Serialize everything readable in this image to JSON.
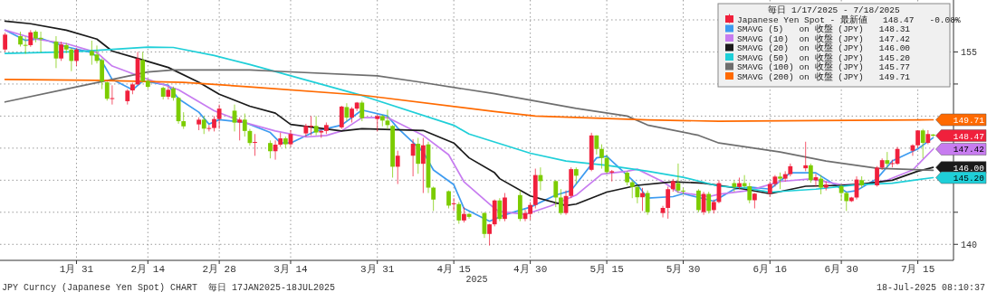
{
  "chart_data": {
    "type": "candlestick",
    "xlabel": "2025",
    "legend": "top right",
    "legend_title": "毎日 1/17/2025 - 7/18/2025",
    "grid": true,
    "x": [
      "2025-01-17",
      "2025-01-20",
      "2025-01-21",
      "2025-01-22",
      "2025-01-23",
      "2025-01-24",
      "2025-01-27",
      "2025-01-28",
      "2025-01-29",
      "2025-01-30",
      "2025-01-31",
      "2025-02-03",
      "2025-02-04",
      "2025-02-05",
      "2025-02-06",
      "2025-02-07",
      "2025-02-10",
      "2025-02-11",
      "2025-02-12",
      "2025-02-13",
      "2025-02-14",
      "2025-02-17",
      "2025-02-18",
      "2025-02-19",
      "2025-02-20",
      "2025-02-21",
      "2025-02-24",
      "2025-02-25",
      "2025-02-26",
      "2025-02-27",
      "2025-02-28",
      "2025-03-03",
      "2025-03-04",
      "2025-03-05",
      "2025-03-06",
      "2025-03-07",
      "2025-03-10",
      "2025-03-11",
      "2025-03-12",
      "2025-03-13",
      "2025-03-14",
      "2025-03-17",
      "2025-03-18",
      "2025-03-19",
      "2025-03-20",
      "2025-03-21",
      "2025-03-24",
      "2025-03-25",
      "2025-03-26",
      "2025-03-27",
      "2025-03-28",
      "2025-03-31",
      "2025-04-01",
      "2025-04-02",
      "2025-04-03",
      "2025-04-04",
      "2025-04-07",
      "2025-04-08",
      "2025-04-09",
      "2025-04-10",
      "2025-04-11",
      "2025-04-14",
      "2025-04-15",
      "2025-04-16",
      "2025-04-17",
      "2025-04-18",
      "2025-04-21",
      "2025-04-22",
      "2025-04-23",
      "2025-04-24",
      "2025-04-25",
      "2025-04-28",
      "2025-04-29",
      "2025-04-30",
      "2025-05-01",
      "2025-05-02",
      "2025-05-05",
      "2025-05-06",
      "2025-05-07",
      "2025-05-08",
      "2025-05-09",
      "2025-05-12",
      "2025-05-13",
      "2025-05-14",
      "2025-05-15",
      "2025-05-16",
      "2025-05-19",
      "2025-05-20",
      "2025-05-21",
      "2025-05-22",
      "2025-05-23",
      "2025-05-26",
      "2025-05-27",
      "2025-05-28",
      "2025-05-29",
      "2025-05-30",
      "2025-06-02",
      "2025-06-03",
      "2025-06-04",
      "2025-06-05",
      "2025-06-06",
      "2025-06-09",
      "2025-06-10",
      "2025-06-11",
      "2025-06-12",
      "2025-06-13",
      "2025-06-16",
      "2025-06-17",
      "2025-06-18",
      "2025-06-19",
      "2025-06-20",
      "2025-06-23",
      "2025-06-24",
      "2025-06-25",
      "2025-06-26",
      "2025-06-27",
      "2025-06-30",
      "2025-07-01",
      "2025-07-02",
      "2025-07-03",
      "2025-07-04",
      "2025-07-07",
      "2025-07-08",
      "2025-07-09",
      "2025-07-10",
      "2025-07-11",
      "2025-07-14",
      "2025-07-15",
      "2025-07-16",
      "2025-07-17",
      "2025-07-18"
    ],
    "xlim": [
      "2025-01-16",
      "2025-07-22"
    ],
    "xticks": [
      {
        "value": "2025-01-31",
        "label": "1月 31"
      },
      {
        "value": "2025-02-14",
        "label": "2月 14"
      },
      {
        "value": "2025-02-28",
        "label": "2月 28"
      },
      {
        "value": "2025-03-14",
        "label": "3月 14"
      },
      {
        "value": "2025-03-31",
        "label": "3月 31"
      },
      {
        "value": "2025-04-15",
        "label": "4月 15"
      },
      {
        "value": "2025-04-30",
        "label": "4月 30"
      },
      {
        "value": "2025-05-15",
        "label": "5月 15"
      },
      {
        "value": "2025-05-30",
        "label": "5月 30"
      },
      {
        "value": "2025-06-16",
        "label": "6月 16"
      },
      {
        "value": "2025-06-30",
        "label": "6月 30"
      },
      {
        "value": "2025-07-15",
        "label": "7月 15"
      }
    ],
    "ylim": [
      138.75,
      159.05
    ],
    "yticks": [
      140,
      {
        "value": 142.5,
        "label": null
      },
      {
        "value": 145,
        "label": null
      },
      {
        "value": 147.5,
        "label": null
      },
      {
        "value": 150,
        "label": null
      },
      {
        "value": 152.5,
        "label": null
      },
      155,
      {
        "value": 157.5,
        "label": null
      }
    ],
    "series": [
      {
        "name": "Japanese Yen Spot - 最新値   148.47   -0.08%",
        "type": "candlestick",
        "color": "#f0203c",
        "ohlc": [
          [
            155.19,
            156.5,
            155.0,
            156.35
          ],
          [
            156.23,
            156.58,
            155.42,
            155.58
          ],
          [
            155.55,
            156.2,
            154.85,
            155.5
          ],
          [
            155.53,
            156.7,
            155.4,
            156.53
          ],
          [
            156.58,
            156.7,
            155.75,
            156.05
          ],
          [
            156.1,
            156.58,
            154.95,
            156.0
          ],
          [
            155.81,
            156.23,
            153.74,
            154.49
          ],
          [
            154.49,
            155.8,
            154.3,
            155.58
          ],
          [
            155.53,
            155.7,
            154.9,
            155.19
          ],
          [
            155.19,
            155.3,
            153.5,
            154.3
          ],
          [
            154.3,
            155.3,
            153.9,
            155.19
          ],
          [
            155.07,
            155.88,
            154.0,
            154.72
          ],
          [
            154.8,
            155.5,
            154.1,
            154.3
          ],
          [
            154.37,
            154.5,
            152.1,
            152.7
          ],
          [
            152.63,
            152.7,
            151.2,
            151.35
          ],
          [
            151.35,
            152.4,
            150.9,
            151.4
          ],
          [
            151.16,
            152.1,
            150.9,
            151.98
          ],
          [
            152.0,
            152.6,
            151.7,
            152.47
          ],
          [
            152.47,
            155.0,
            152.4,
            154.49
          ],
          [
            154.37,
            155.0,
            152.6,
            152.74
          ],
          [
            152.74,
            152.9,
            152.1,
            152.28
          ],
          [
            152.2,
            152.3,
            151.3,
            151.51
          ],
          [
            151.51,
            152.3,
            151.3,
            152.05
          ],
          [
            152.16,
            152.3,
            151.2,
            151.42
          ],
          [
            151.42,
            151.5,
            149.4,
            149.6
          ],
          [
            149.6,
            150.3,
            149.0,
            149.2
          ],
          [
            149.35,
            149.9,
            148.9,
            149.72
          ],
          [
            149.72,
            150.0,
            148.6,
            149.02
          ],
          [
            149.05,
            149.3,
            148.8,
            149.07
          ],
          [
            149.07,
            150.0,
            148.8,
            149.77
          ],
          [
            149.77,
            150.9,
            149.0,
            150.58
          ],
          [
            150.42,
            150.9,
            148.8,
            149.49
          ],
          [
            149.49,
            149.9,
            148.1,
            149.72
          ],
          [
            149.72,
            150.2,
            148.4,
            148.84
          ],
          [
            148.84,
            149.0,
            147.7,
            147.9
          ],
          [
            147.95,
            148.6,
            146.9,
            147.98
          ],
          [
            147.9,
            148.1,
            146.7,
            147.26
          ],
          [
            147.26,
            148.1,
            146.6,
            147.77
          ],
          [
            147.77,
            148.7,
            147.6,
            148.26
          ],
          [
            148.26,
            148.4,
            147.5,
            147.8
          ],
          [
            147.8,
            148.9,
            147.6,
            148.6
          ],
          [
            148.65,
            149.4,
            148.4,
            149.23
          ],
          [
            149.2,
            150.0,
            148.5,
            149.25
          ],
          [
            149.23,
            150.0,
            148.5,
            148.72
          ],
          [
            148.72,
            149.0,
            148.3,
            148.84
          ],
          [
            148.84,
            149.5,
            148.6,
            149.3
          ],
          [
            149.12,
            150.8,
            149.0,
            150.74
          ],
          [
            150.7,
            151.0,
            149.6,
            149.88
          ],
          [
            149.88,
            150.7,
            149.5,
            150.58
          ],
          [
            150.58,
            151.1,
            150.4,
            151.05
          ],
          [
            151.05,
            151.2,
            149.6,
            149.84
          ],
          [
            149.77,
            150.1,
            148.8,
            150.0
          ],
          [
            150.0,
            150.1,
            149.2,
            149.65
          ],
          [
            149.65,
            150.5,
            149.0,
            149.3
          ],
          [
            149.23,
            149.3,
            145.2,
            146.05
          ],
          [
            146.05,
            147.3,
            144.7,
            146.91
          ],
          [
            146.91,
            148.2,
            145.3,
            147.84
          ],
          [
            147.84,
            148.3,
            145.5,
            146.28
          ],
          [
            146.28,
            148.3,
            144.0,
            147.72
          ],
          [
            147.79,
            148.0,
            144.0,
            144.42
          ],
          [
            144.42,
            144.5,
            142.6,
            143.49
          ],
          [
            144.14,
            144.2,
            142.8,
            143.02
          ],
          [
            143.14,
            143.6,
            142.6,
            143.2
          ],
          [
            143.14,
            143.3,
            141.6,
            141.86
          ],
          [
            141.86,
            142.9,
            141.7,
            142.37
          ],
          [
            142.37,
            142.4,
            142.0,
            142.14
          ],
          [
            142.44,
            142.5,
            140.5,
            140.81
          ],
          [
            140.81,
            141.6,
            139.9,
            141.56
          ],
          [
            141.56,
            143.5,
            141.4,
            143.42
          ],
          [
            143.42,
            143.6,
            141.8,
            141.98
          ],
          [
            141.98,
            144.0,
            141.8,
            143.65
          ],
          [
            143.84,
            144.2,
            141.8,
            141.98
          ],
          [
            141.98,
            142.7,
            141.8,
            142.44
          ],
          [
            142.37,
            143.3,
            141.9,
            143.07
          ],
          [
            143.07,
            145.9,
            142.8,
            145.4
          ],
          [
            145.4,
            146.0,
            144.2,
            144.93
          ],
          [
            144.93,
            145.0,
            142.9,
            143.65
          ],
          [
            143.65,
            144.3,
            142.3,
            142.44
          ],
          [
            142.44,
            144.2,
            142.3,
            143.77
          ],
          [
            143.77,
            146.0,
            143.6,
            145.86
          ],
          [
            145.86,
            146.0,
            144.7,
            145.35
          ],
          [
            145.81,
            148.7,
            145.7,
            148.49
          ],
          [
            148.49,
            148.5,
            147.0,
            147.44
          ],
          [
            147.44,
            147.8,
            145.9,
            146.74
          ],
          [
            146.74,
            147.0,
            145.5,
            145.63
          ],
          [
            145.6,
            145.8,
            144.9,
            145.7
          ],
          [
            145.58,
            145.7,
            144.6,
            144.84
          ],
          [
            144.84,
            145.0,
            143.6,
            144.47
          ],
          [
            144.47,
            144.6,
            143.2,
            143.67
          ],
          [
            143.67,
            144.4,
            142.6,
            144.0
          ],
          [
            144.0,
            144.2,
            142.3,
            142.51
          ],
          [
            142.44,
            143.0,
            142.1,
            142.84
          ],
          [
            142.84,
            144.5,
            142.0,
            144.3
          ],
          [
            144.3,
            145.1,
            144.1,
            144.93
          ],
          [
            144.77,
            146.3,
            144.0,
            144.19
          ],
          [
            144.19,
            144.4,
            143.9,
            144.15
          ],
          [
            144.19,
            144.3,
            142.5,
            142.67
          ],
          [
            142.51,
            144.1,
            142.3,
            143.93
          ],
          [
            143.93,
            144.1,
            142.4,
            142.6
          ],
          [
            142.67,
            143.5,
            142.4,
            143.3
          ],
          [
            143.3,
            145.0,
            143.2,
            144.77
          ],
          [
            144.77,
            145.0,
            144.1,
            144.47
          ],
          [
            144.47,
            145.2,
            144.3,
            144.77
          ],
          [
            144.77,
            145.4,
            144.4,
            144.53
          ],
          [
            144.53,
            144.8,
            143.2,
            143.44
          ],
          [
            143.44,
            144.0,
            142.8,
            143.95
          ],
          [
            143.95,
            144.9,
            143.7,
            144.7
          ],
          [
            144.7,
            145.4,
            144.5,
            145.28
          ],
          [
            145.28,
            145.6,
            144.3,
            145.12
          ],
          [
            145.12,
            145.7,
            144.9,
            145.47
          ],
          [
            145.47,
            146.3,
            145.3,
            146.09
          ],
          [
            145.93,
            148.0,
            145.7,
            146.16
          ],
          [
            146.16,
            146.3,
            144.8,
            145.0
          ],
          [
            145.0,
            145.5,
            144.5,
            145.23
          ],
          [
            145.12,
            145.4,
            143.9,
            144.42
          ],
          [
            144.42,
            144.9,
            144.2,
            144.65
          ],
          [
            144.53,
            144.7,
            143.4,
            144.0
          ],
          [
            144.0,
            144.1,
            142.6,
            143.37
          ],
          [
            143.37,
            143.7,
            143.3,
            143.65
          ],
          [
            143.65,
            145.3,
            143.5,
            145.05
          ],
          [
            145.0,
            145.3,
            144.4,
            144.6
          ],
          [
            144.6,
            146.1,
            144.5,
            145.98
          ],
          [
            145.98,
            146.7,
            145.8,
            146.56
          ],
          [
            146.56,
            147.2,
            146.0,
            146.28
          ],
          [
            146.3,
            146.6,
            146.0,
            146.33
          ],
          [
            146.28,
            147.6,
            146.2,
            147.44
          ],
          [
            147.3,
            147.8,
            146.9,
            147.72
          ],
          [
            147.72,
            148.9,
            147.5,
            148.88
          ],
          [
            148.88,
            149.0,
            146.7,
            147.91
          ],
          [
            147.91,
            148.9,
            147.8,
            148.6
          ],
          [
            148.56,
            148.6,
            148.4,
            148.47
          ]
        ],
        "colors": [
          "#f0203c",
          "#7ccc00",
          "#7ccc00",
          "#f0203c",
          "#7ccc00",
          "#7ccc00",
          "#7ccc00",
          "#f0203c",
          "#7ccc00",
          "#7ccc00",
          "#f0203c",
          "#7ccc00",
          "#7ccc00",
          "#7ccc00",
          "#7ccc00",
          "#f0203c",
          "#f0203c",
          "#f0203c",
          "#f0203c",
          "#7ccc00",
          "#7ccc00",
          "#7ccc00",
          "#f0203c",
          "#7ccc00",
          "#7ccc00",
          "#7ccc00",
          "#f0203c",
          "#7ccc00",
          "#f0203c",
          "#f0203c",
          "#f0203c",
          "#7ccc00",
          "#f0203c",
          "#7ccc00",
          "#7ccc00",
          "#f0203c",
          "#7ccc00",
          "#f0203c",
          "#f0203c",
          "#7ccc00",
          "#f0203c",
          "#f0203c",
          "#f0203c",
          "#7ccc00",
          "#f0203c",
          "#f0203c",
          "#f0203c",
          "#7ccc00",
          "#f0203c",
          "#f0203c",
          "#7ccc00",
          "#f0203c",
          "#7ccc00",
          "#7ccc00",
          "#7ccc00",
          "#f0203c",
          "#f0203c",
          "#7ccc00",
          "#f0203c",
          "#7ccc00",
          "#7ccc00",
          "#7ccc00",
          "#f0203c",
          "#7ccc00",
          "#f0203c",
          "#7ccc00",
          "#7ccc00",
          "#f0203c",
          "#f0203c",
          "#7ccc00",
          "#f0203c",
          "#7ccc00",
          "#f0203c",
          "#f0203c",
          "#f0203c",
          "#7ccc00",
          "#7ccc00",
          "#7ccc00",
          "#f0203c",
          "#f0203c",
          "#7ccc00",
          "#f0203c",
          "#7ccc00",
          "#7ccc00",
          "#7ccc00",
          "#f0203c",
          "#7ccc00",
          "#7ccc00",
          "#7ccc00",
          "#f0203c",
          "#7ccc00",
          "#f0203c",
          "#f0203c",
          "#f0203c",
          "#7ccc00",
          "#7ccc00",
          "#7ccc00",
          "#f0203c",
          "#7ccc00",
          "#f0203c",
          "#f0203c",
          "#7ccc00",
          "#f0203c",
          "#7ccc00",
          "#7ccc00",
          "#f0203c",
          "#f0203c",
          "#f0203c",
          "#7ccc00",
          "#f0203c",
          "#f0203c",
          "#f0203c",
          "#7ccc00",
          "#f0203c",
          "#7ccc00",
          "#f0203c",
          "#7ccc00",
          "#7ccc00",
          "#f0203c",
          "#f0203c",
          "#7ccc00",
          "#f0203c",
          "#f0203c",
          "#7ccc00",
          "#f0203c",
          "#f0203c",
          "#f0203c",
          "#f0203c",
          "#7ccc00",
          "#f0203c",
          "#7ccc00"
        ]
      },
      {
        "name": "SMAVG (5)   on 收盤 (JPY)   148.31",
        "type": "line",
        "color": "#3d9bf0",
        "x": [
          "2025-01-17",
          "2025-01-21",
          "2025-01-24",
          "2025-01-29",
          "2025-02-03",
          "2025-02-05",
          "2025-02-07",
          "2025-02-11",
          "2025-02-13",
          "2025-02-18",
          "2025-02-20",
          "2025-02-24",
          "2025-02-26",
          "2025-02-28",
          "2025-03-05",
          "2025-03-10",
          "2025-03-12",
          "2025-03-14",
          "2025-03-19",
          "2025-03-24",
          "2025-03-28",
          "2025-04-02",
          "2025-04-04",
          "2025-04-09",
          "2025-04-11",
          "2025-04-15",
          "2025-04-17",
          "2025-04-22",
          "2025-04-25",
          "2025-04-30",
          "2025-05-05",
          "2025-05-08",
          "2025-05-13",
          "2025-05-15",
          "2025-05-21",
          "2025-05-23",
          "2025-05-28",
          "2025-05-30",
          "2025-06-05",
          "2025-06-09",
          "2025-06-12",
          "2025-06-16",
          "2025-06-20",
          "2025-06-25",
          "2025-07-01",
          "2025-07-03",
          "2025-07-07",
          "2025-07-10",
          "2025-07-15",
          "2025-07-18"
        ],
        "values": [
          156.7,
          155.9,
          156.05,
          155.4,
          154.95,
          154.26,
          152.86,
          152.05,
          152.74,
          152.4,
          151.35,
          150.3,
          149.37,
          149.72,
          149.5,
          148.72,
          147.9,
          147.9,
          148.84,
          149.3,
          150.47,
          150.0,
          149.07,
          147.2,
          145.8,
          144.65,
          142.8,
          141.8,
          142.3,
          142.9,
          143.84,
          144.19,
          146.74,
          146.86,
          144.65,
          143.6,
          143.72,
          143.95,
          143.37,
          144.3,
          144.47,
          144.3,
          145.58,
          145.58,
          144.07,
          144.19,
          145.12,
          146.5,
          147.44,
          148.31
        ]
      },
      {
        "name": "SMAVG (10)  on 收盤 (JPY)   147.42",
        "type": "line",
        "color": "#c77cf0",
        "x": [
          "2025-01-17",
          "2025-01-23",
          "2025-01-29",
          "2025-02-04",
          "2025-02-07",
          "2025-02-14",
          "2025-02-20",
          "2025-02-27",
          "2025-03-05",
          "2025-03-11",
          "2025-03-17",
          "2025-03-21",
          "2025-03-24",
          "2025-03-28",
          "2025-04-02",
          "2025-04-09",
          "2025-04-14",
          "2025-04-17",
          "2025-04-23",
          "2025-04-24",
          "2025-04-29",
          "2025-05-04",
          "2025-05-09",
          "2025-05-14",
          "2025-05-19",
          "2025-05-21",
          "2025-05-26",
          "2025-05-29",
          "2025-06-04",
          "2025-06-06",
          "2025-06-12",
          "2025-06-18",
          "2025-06-24",
          "2025-06-30",
          "2025-07-04",
          "2025-07-09",
          "2025-07-14",
          "2025-07-18"
        ],
        "values": [
          156.7,
          156.0,
          155.65,
          154.95,
          153.9,
          152.86,
          152.05,
          150.42,
          149.49,
          148.84,
          148.37,
          148.49,
          148.84,
          149.88,
          149.88,
          148.49,
          146.98,
          144.88,
          142.79,
          142.56,
          142.33,
          143.0,
          143.84,
          145.47,
          145.7,
          145.86,
          144.88,
          144.07,
          143.72,
          143.9,
          144.2,
          144.9,
          145.1,
          144.65,
          144.65,
          145.0,
          145.8,
          147.42
        ]
      },
      {
        "name": "SMAVG (20)  on 收盤 (JPY)   146.00",
        "type": "line",
        "color": "#1a1a1a",
        "x": [
          "2025-01-17",
          "2025-01-22",
          "2025-01-29",
          "2025-02-04",
          "2025-02-07",
          "2025-02-12",
          "2025-02-18",
          "2025-02-24",
          "2025-02-28",
          "2025-03-06",
          "2025-03-11",
          "2025-03-14",
          "2025-03-24",
          "2025-03-28",
          "2025-04-03",
          "2025-04-09",
          "2025-04-15",
          "2025-04-18",
          "2025-04-23",
          "2025-04-24",
          "2025-04-30",
          "2025-05-07",
          "2025-05-09",
          "2025-05-15",
          "2025-05-21",
          "2025-05-28",
          "2025-06-03",
          "2025-06-11",
          "2025-06-16",
          "2025-06-23",
          "2025-06-30",
          "2025-07-04",
          "2025-07-10",
          "2025-07-15",
          "2025-07-18"
        ],
        "values": [
          157.4,
          157.2,
          156.7,
          156.0,
          155.07,
          154.49,
          153.79,
          152.63,
          151.7,
          150.77,
          150.23,
          149.35,
          148.84,
          149.02,
          148.95,
          148.88,
          147.9,
          146.74,
          145.58,
          145.12,
          143.77,
          143.02,
          143.14,
          144.07,
          144.6,
          144.88,
          144.77,
          144.3,
          143.95,
          144.53,
          144.6,
          144.7,
          145.0,
          145.7,
          146.0
        ]
      },
      {
        "name": "SMAVG (50)  on 收盤 (JPY)   145.20",
        "type": "line",
        "color": "#1fcfd8",
        "x": [
          "2025-01-17",
          "2025-01-31",
          "2025-02-14",
          "2025-02-19",
          "2025-02-27",
          "2025-03-06",
          "2025-03-11",
          "2025-03-28",
          "2025-04-15",
          "2025-04-18",
          "2025-04-30",
          "2025-05-07",
          "2025-05-15",
          "2025-05-23",
          "2025-05-30",
          "2025-06-06",
          "2025-06-11",
          "2025-06-16",
          "2025-06-25",
          "2025-07-03",
          "2025-07-10",
          "2025-07-18"
        ],
        "values": [
          154.88,
          155.02,
          155.37,
          155.35,
          154.72,
          154.02,
          153.47,
          151.6,
          149.28,
          148.6,
          147.1,
          146.5,
          146.16,
          145.7,
          145.23,
          144.53,
          144.42,
          144.07,
          144.3,
          144.65,
          144.77,
          145.2
        ]
      },
      {
        "name": "SMAVG (100) on 收盤 (JPY)   145.77",
        "type": "line",
        "color": "#6e6e6e",
        "x": [
          "2025-01-17",
          "2025-01-31",
          "2025-02-14",
          "2025-02-19",
          "2025-03-06",
          "2025-03-11",
          "2025-03-31",
          "2025-04-08",
          "2025-04-23",
          "2025-05-09",
          "2025-05-19",
          "2025-05-23",
          "2025-06-02",
          "2025-06-06",
          "2025-06-18",
          "2025-06-27",
          "2025-07-07",
          "2025-07-18"
        ],
        "values": [
          151.1,
          152.28,
          153.44,
          153.6,
          153.6,
          153.5,
          153.14,
          152.67,
          151.74,
          150.6,
          150.0,
          149.3,
          148.5,
          147.9,
          147.2,
          146.5,
          145.93,
          145.77
        ]
      },
      {
        "name": "SMAVG (200) on 收盤 (JPY)   149.71",
        "type": "line",
        "color": "#ff6a00",
        "x": [
          "2025-01-17",
          "2025-02-04",
          "2025-02-21",
          "2025-03-06",
          "2025-03-28",
          "2025-04-23",
          "2025-05-01",
          "2025-05-23",
          "2025-06-06",
          "2025-06-25",
          "2025-07-18"
        ],
        "values": [
          152.86,
          152.79,
          152.63,
          152.28,
          151.63,
          150.35,
          150.0,
          149.7,
          149.6,
          149.65,
          149.71
        ]
      }
    ],
    "annotations": [
      "JPY Curncy (Japanese Yen Spot) CHART  毎日 17JAN2025-18JUL2025",
      "18-Jul-2025 08:10:37",
      {
        "text": "149.71",
        "x": "2025-07-18",
        "y": 149.71
      },
      {
        "text": "148.47",
        "x": "2025-07-18",
        "y": 148.47
      },
      {
        "text": "147.42",
        "x": "2025-07-18",
        "y": 147.42
      },
      {
        "text": "146.00",
        "x": "2025-07-18",
        "y": 146.0
      },
      {
        "text": "145.20",
        "x": "2025-07-18",
        "y": 145.2
      }
    ]
  }
}
